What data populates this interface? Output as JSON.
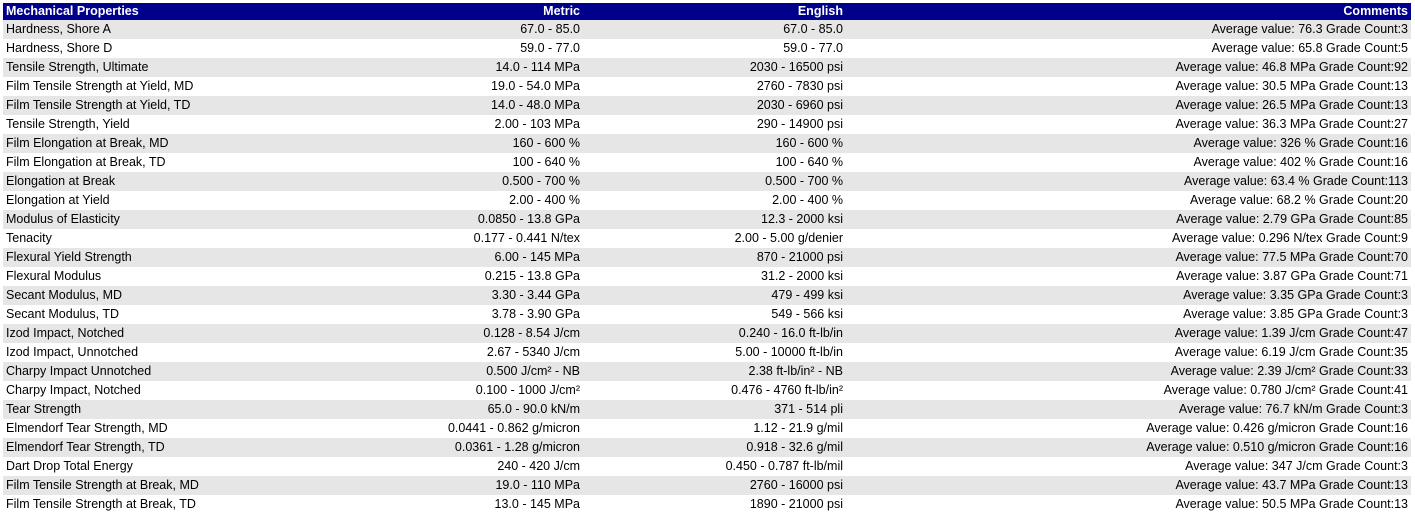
{
  "table": {
    "headers": [
      "Mechanical Properties",
      "Metric",
      "English",
      "Comments"
    ],
    "rows": [
      [
        "Hardness, Shore A",
        "67.0 - 85.0",
        "67.0 - 85.0",
        "Average value: 76.3 Grade Count:3"
      ],
      [
        "Hardness, Shore D",
        "59.0 - 77.0",
        "59.0 - 77.0",
        "Average value: 65.8 Grade Count:5"
      ],
      [
        "Tensile Strength, Ultimate",
        "14.0 - 114 MPa",
        "2030 - 16500 psi",
        "Average value: 46.8 MPa Grade Count:92"
      ],
      [
        "Film Tensile Strength at Yield, MD",
        "19.0 - 54.0 MPa",
        "2760 - 7830 psi",
        "Average value: 30.5 MPa Grade Count:13"
      ],
      [
        "Film Tensile Strength at Yield, TD",
        "14.0 - 48.0 MPa",
        "2030 - 6960 psi",
        "Average value: 26.5 MPa Grade Count:13"
      ],
      [
        "Tensile Strength, Yield",
        "2.00 - 103 MPa",
        "290 - 14900 psi",
        "Average value: 36.3 MPa Grade Count:27"
      ],
      [
        "Film Elongation at Break, MD",
        "160 - 600 %",
        "160 - 600 %",
        "Average value: 326 % Grade Count:16"
      ],
      [
        "Film Elongation at Break, TD",
        "100 - 640 %",
        "100 - 640 %",
        "Average value: 402 % Grade Count:16"
      ],
      [
        "Elongation at Break",
        "0.500 - 700 %",
        "0.500 - 700 %",
        "Average value: 63.4 % Grade Count:113"
      ],
      [
        "Elongation at Yield",
        "2.00 - 400 %",
        "2.00 - 400 %",
        "Average value: 68.2 % Grade Count:20"
      ],
      [
        "Modulus of Elasticity",
        "0.0850 - 13.8 GPa",
        "12.3 - 2000 ksi",
        "Average value: 2.79 GPa Grade Count:85"
      ],
      [
        "Tenacity",
        "0.177 - 0.441 N/tex",
        "2.00 - 5.00 g/denier",
        "Average value: 0.296 N/tex Grade Count:9"
      ],
      [
        "Flexural Yield Strength",
        "6.00 - 145 MPa",
        "870 - 21000 psi",
        "Average value: 77.5 MPa Grade Count:70"
      ],
      [
        "Flexural Modulus",
        "0.215 - 13.8 GPa",
        "31.2 - 2000 ksi",
        "Average value: 3.87 GPa Grade Count:71"
      ],
      [
        "Secant Modulus, MD",
        "3.30 - 3.44 GPa",
        "479 - 499 ksi",
        "Average value: 3.35 GPa Grade Count:3"
      ],
      [
        "Secant Modulus, TD",
        "3.78 - 3.90 GPa",
        "549 - 566 ksi",
        "Average value: 3.85 GPa Grade Count:3"
      ],
      [
        "Izod Impact, Notched",
        "0.128 - 8.54 J/cm",
        "0.240 - 16.0 ft-lb/in",
        "Average value: 1.39 J/cm Grade Count:47"
      ],
      [
        "Izod Impact, Unnotched",
        "2.67 - 5340 J/cm",
        "5.00 - 10000 ft-lb/in",
        "Average value: 6.19 J/cm Grade Count:35"
      ],
      [
        "Charpy Impact Unnotched",
        "0.500 J/cm² - NB",
        "2.38 ft-lb/in² - NB",
        "Average value: 2.39 J/cm² Grade Count:33"
      ],
      [
        "Charpy Impact, Notched",
        "0.100 - 1000 J/cm²",
        "0.476 - 4760 ft-lb/in²",
        "Average value: 0.780 J/cm² Grade Count:41"
      ],
      [
        "Tear Strength",
        "65.0 - 90.0 kN/m",
        "371 - 514 pli",
        "Average value: 76.7 kN/m Grade Count:3"
      ],
      [
        "Elmendorf Tear Strength, MD",
        "0.0441 - 0.862 g/micron",
        "1.12 - 21.9 g/mil",
        "Average value: 0.426 g/micron Grade Count:16"
      ],
      [
        "Elmendorf Tear Strength, TD",
        "0.0361 - 1.28 g/micron",
        "0.918 - 32.6 g/mil",
        "Average value: 0.510 g/micron Grade Count:16"
      ],
      [
        "Dart Drop Total Energy",
        "240 - 420 J/cm",
        "0.450 - 0.787 ft-lb/mil",
        "Average value: 347 J/cm Grade Count:3"
      ],
      [
        "Film Tensile Strength at Break, MD",
        "19.0 - 110 MPa",
        "2760 - 16000 psi",
        "Average value: 43.7 MPa Grade Count:13"
      ],
      [
        "Film Tensile Strength at Break, TD",
        "13.0 - 145 MPa",
        "1890 - 21000 psi",
        "Average value: 50.5 MPa Grade Count:13"
      ]
    ]
  },
  "colors": {
    "header_bg": "#00008b",
    "header_text": "#ffffff",
    "row_alt_bg": "#e6e6e6",
    "row_bg": "#ffffff"
  }
}
